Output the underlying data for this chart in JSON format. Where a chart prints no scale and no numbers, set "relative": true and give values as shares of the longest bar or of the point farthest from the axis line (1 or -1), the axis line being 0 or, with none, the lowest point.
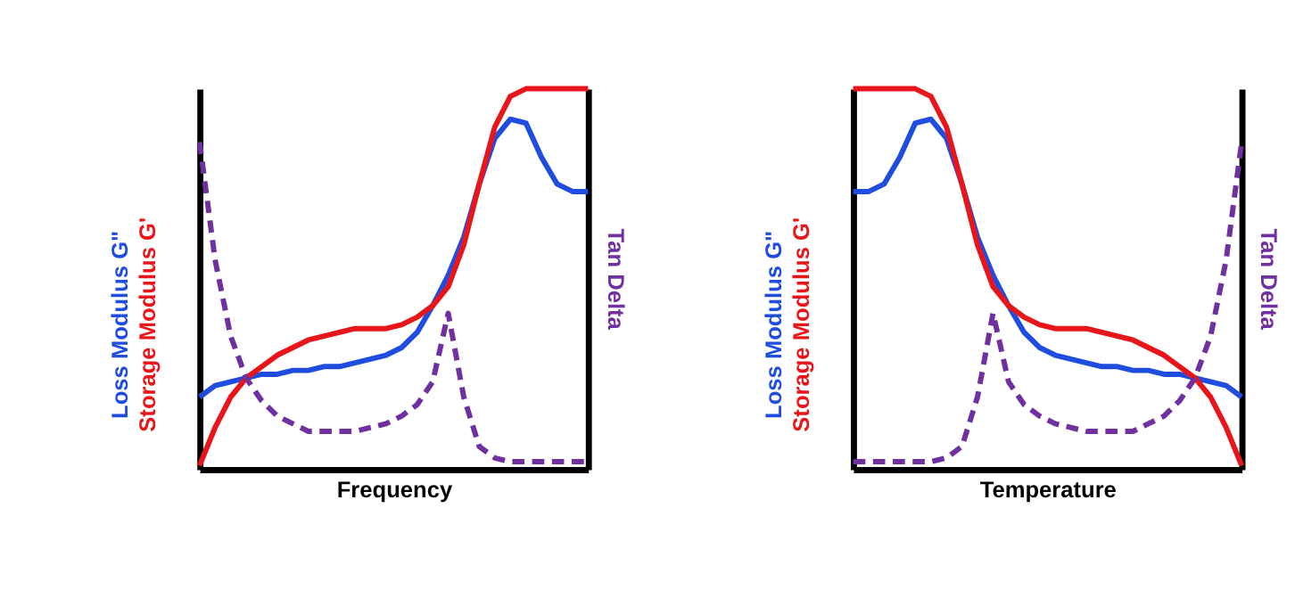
{
  "chart_data": [
    {
      "type": "line",
      "relative": true,
      "xlabel": "Frequency",
      "y2label": "Tan Delta",
      "categories": [
        null,
        null,
        null,
        null,
        null,
        null,
        null,
        null,
        null,
        null,
        null,
        null,
        null,
        null,
        null,
        null,
        null,
        null,
        null,
        null,
        null,
        null,
        null,
        null,
        null,
        null
      ],
      "series": [
        {
          "name": "Loss Modulus G\"",
          "color": "#1f4de0",
          "values": [
            0.19,
            0.22,
            0.23,
            0.24,
            0.25,
            0.25,
            0.26,
            0.26,
            0.27,
            0.27,
            0.28,
            0.29,
            0.3,
            0.32,
            0.36,
            0.43,
            0.51,
            0.61,
            0.75,
            0.87,
            0.92,
            0.91,
            0.82,
            0.75,
            0.73,
            0.73
          ]
        },
        {
          "name": "Storage Modulus G'",
          "color": "#e8161b",
          "values": [
            0.01,
            0.11,
            0.19,
            0.24,
            0.27,
            0.3,
            0.32,
            0.34,
            0.35,
            0.36,
            0.37,
            0.37,
            0.37,
            0.38,
            0.4,
            0.43,
            0.48,
            0.59,
            0.75,
            0.9,
            0.98,
            1,
            1,
            1,
            1,
            1
          ]
        },
        {
          "color": "#7030a0",
          "line_style": "dashed",
          "values": [
            0.86,
            0.55,
            0.35,
            0.24,
            0.18,
            0.14,
            0.12,
            0.1,
            0.1,
            0.1,
            0.1,
            0.11,
            0.12,
            0.14,
            0.17,
            0.23,
            0.41,
            0.19,
            0.06,
            0.03,
            0.02,
            0.02,
            0.02,
            0.02,
            0.02,
            0.02
          ]
        }
      ]
    },
    {
      "type": "line",
      "relative": true,
      "xlabel": "Temperature",
      "y2label": "Tan Delta",
      "categories": [
        null,
        null,
        null,
        null,
        null,
        null,
        null,
        null,
        null,
        null,
        null,
        null,
        null,
        null,
        null,
        null,
        null,
        null,
        null,
        null,
        null,
        null,
        null,
        null,
        null,
        null
      ],
      "series": [
        {
          "name": "Loss Modulus G\"",
          "color": "#1f4de0",
          "values": [
            0.73,
            0.73,
            0.75,
            0.82,
            0.91,
            0.92,
            0.87,
            0.75,
            0.61,
            0.51,
            0.43,
            0.36,
            0.32,
            0.3,
            0.29,
            0.28,
            0.27,
            0.27,
            0.26,
            0.26,
            0.25,
            0.25,
            0.24,
            0.23,
            0.22,
            0.19
          ]
        },
        {
          "name": "Storage Modulus G'",
          "color": "#e8161b",
          "values": [
            1,
            1,
            1,
            1,
            1,
            0.98,
            0.9,
            0.75,
            0.59,
            0.48,
            0.43,
            0.4,
            0.38,
            0.37,
            0.37,
            0.37,
            0.36,
            0.35,
            0.34,
            0.32,
            0.3,
            0.27,
            0.24,
            0.19,
            0.11,
            0.01
          ]
        },
        {
          "color": "#7030a0",
          "line_style": "dashed",
          "values": [
            0.02,
            0.02,
            0.02,
            0.02,
            0.02,
            0.02,
            0.03,
            0.06,
            0.19,
            0.41,
            0.23,
            0.17,
            0.14,
            0.12,
            0.11,
            0.1,
            0.1,
            0.1,
            0.1,
            0.12,
            0.14,
            0.18,
            0.24,
            0.35,
            0.55,
            0.86
          ]
        }
      ]
    }
  ]
}
